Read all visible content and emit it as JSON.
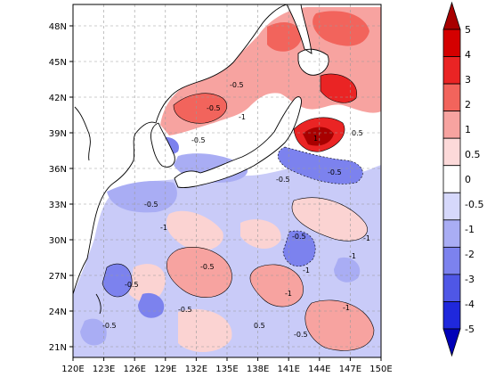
{
  "map": {
    "projection": "lat-lon",
    "lon_range": [
      120,
      150
    ],
    "lat_range": [
      20,
      50
    ],
    "grid": "dashed",
    "x_ticks": [
      "120E",
      "123E",
      "126E",
      "129E",
      "132E",
      "135E",
      "138E",
      "141E",
      "144E",
      "147E",
      "150E"
    ],
    "y_ticks": [
      "21N",
      "24N",
      "27N",
      "30N",
      "33N",
      "36N",
      "39N",
      "42N",
      "45N",
      "48N"
    ],
    "contour_labels": [
      "-0.5",
      "-0.5",
      "-0.5",
      "-1",
      "-0.5",
      "-0.5",
      "-1",
      "-0.5",
      "0.5",
      "-0.5",
      "-1",
      "-1",
      "-0.5",
      "-1",
      "-0.5",
      "1",
      "-0.5",
      "-1",
      "0.5",
      "-0.5",
      "-1",
      "-0.5"
    ]
  },
  "colorbar": {
    "levels": [
      "5",
      "4",
      "3",
      "2",
      "1",
      "0.5",
      "0",
      "-0.5",
      "-1",
      "-2",
      "-3",
      "-4",
      "-5"
    ],
    "colors": [
      "#a80000",
      "#d40000",
      "#ea2424",
      "#f2645c",
      "#f7a3a0",
      "#fcd9d9",
      "#ffffff",
      "#d6d8fb",
      "#a9adf4",
      "#7c82ee",
      "#4f57e6",
      "#1f28dc",
      "#0000b8"
    ]
  }
}
